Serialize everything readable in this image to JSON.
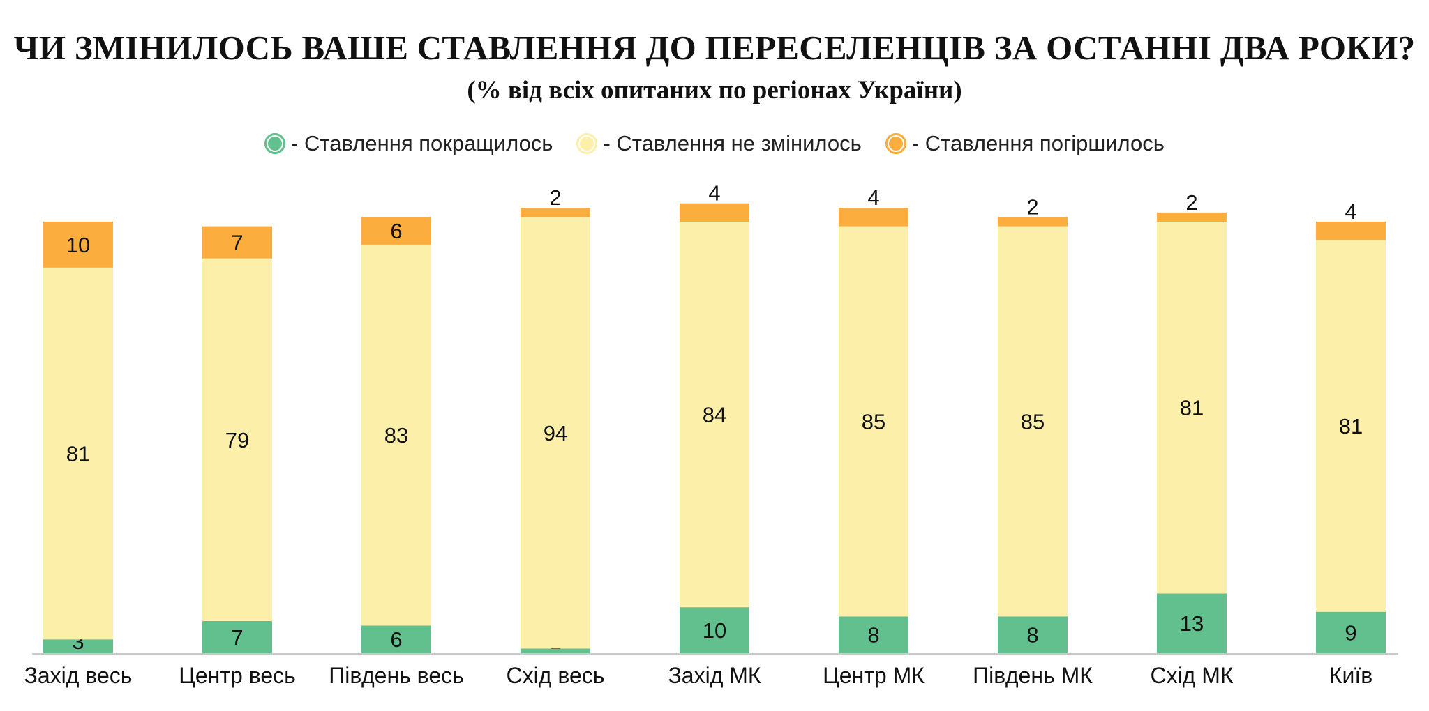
{
  "title": "ЧИ ЗМІНИЛОСЬ ВАШЕ СТАВЛЕННЯ ДО ПЕРЕСЕЛЕНЦІВ ЗА ОСТАННІ ДВА РОКИ?",
  "subtitle": "(% від всіх опитаних по регіонах України)",
  "legend": [
    {
      "label": "- Ставлення покращилось",
      "color": "#62c08e"
    },
    {
      "label": "- Ставлення не змінилось",
      "color": "#fcefa9"
    },
    {
      "label": "- Ставлення погіршилось",
      "color": "#fbad3d"
    }
  ],
  "chart_data": {
    "type": "bar",
    "stacked": true,
    "title": "ЧИ ЗМІНИЛОСЬ ВАШЕ СТАВЛЕННЯ ДО ПЕРЕСЕЛЕНЦІВ ЗА ОСТАННІ ДВА РОКИ?",
    "subtitle": "(% від всіх опитаних по регіонах України)",
    "xlabel": "",
    "ylabel": "",
    "ylim": [
      0,
      94
    ],
    "grid": false,
    "legend_position": "top",
    "categories": [
      "Захід весь",
      "Центр весь",
      "Південь весь",
      "Схід весь",
      "Захід МК",
      "Центр МК",
      "Південь МК",
      "Схід МК",
      "Київ"
    ],
    "series": [
      {
        "name": "Ставлення покращилось",
        "color": "#62c08e",
        "values": [
          3,
          7,
          6,
          1,
          10,
          8,
          8,
          13,
          9
        ]
      },
      {
        "name": "Ставлення не змінилось",
        "color": "#fcefa9",
        "values": [
          81,
          79,
          83,
          94,
          84,
          85,
          85,
          81,
          81
        ]
      },
      {
        "name": "Ставлення погіршилось",
        "color": "#fbad3d",
        "values": [
          10,
          7,
          6,
          2,
          4,
          4,
          2,
          2,
          4
        ]
      }
    ]
  }
}
